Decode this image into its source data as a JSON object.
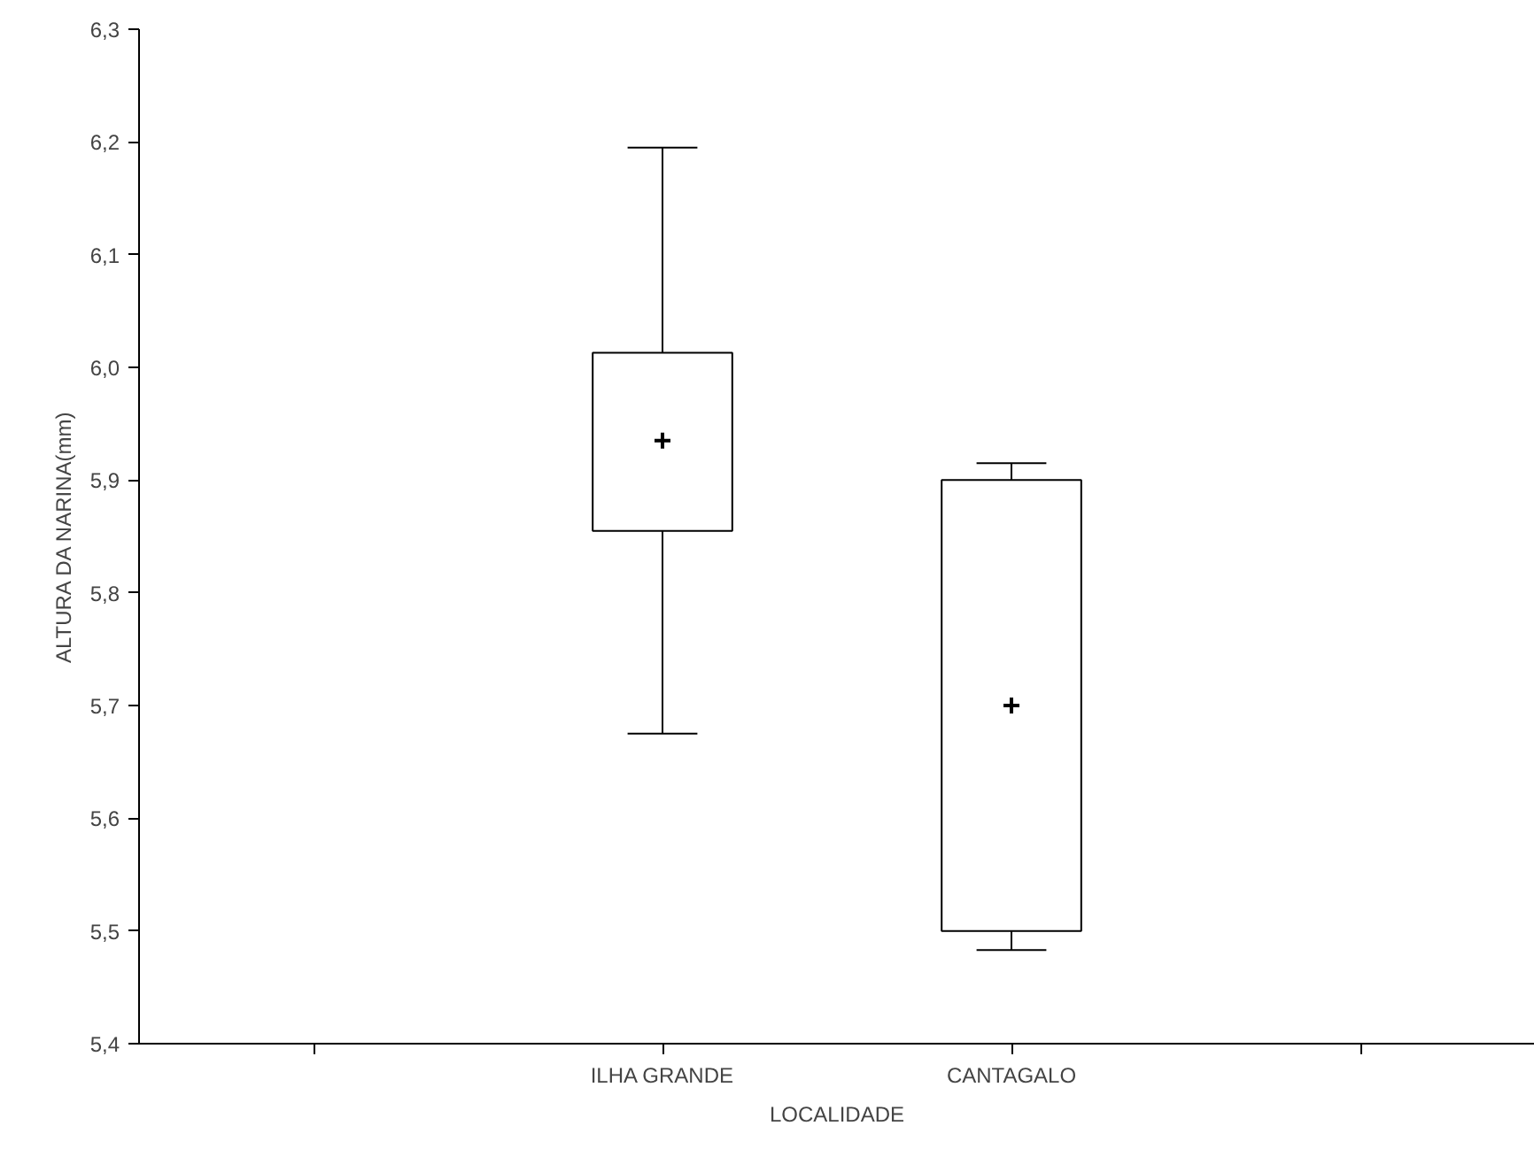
{
  "chart_data": {
    "type": "box",
    "xlabel": "LOCALIDADE",
    "ylabel": "ALTURA DA NARINA(mm)",
    "categories": [
      null,
      "ILHA GRANDE",
      "CANTAGALO",
      null
    ],
    "boxes": [
      null,
      {
        "low": 5.675,
        "q1": 5.855,
        "median": 5.935,
        "q3": 6.013,
        "high": 6.195
      },
      {
        "low": 5.483,
        "q1": 5.5,
        "median": 5.7,
        "q3": 5.9,
        "high": 5.915
      },
      null
    ],
    "color": "#ffffff",
    "ylim": [
      5.4,
      6.3
    ],
    "yticks": [
      {
        "value": 5.4,
        "label": "5,4"
      },
      {
        "value": 5.5,
        "label": "5,5"
      },
      {
        "value": 5.6,
        "label": "5,6"
      },
      {
        "value": 5.7,
        "label": "5,7"
      },
      {
        "value": 5.8,
        "label": "5,8"
      },
      {
        "value": 5.9,
        "label": "5,9"
      },
      {
        "value": 6.0,
        "label": "6,0"
      },
      {
        "value": 6.1,
        "label": "6,1"
      },
      {
        "value": 6.2,
        "label": "6,2"
      },
      {
        "value": 6.3,
        "label": "6,3"
      }
    ],
    "grid": false,
    "marker": "cross"
  }
}
